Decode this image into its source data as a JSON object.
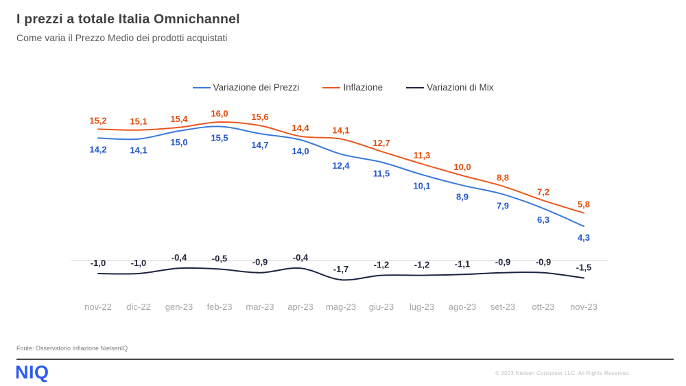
{
  "header": {
    "title": "I prezzi a totale Italia Omnichannel",
    "subtitle": "Come varia il Prezzo Medio dei prodotti acquistati"
  },
  "chart_data": {
    "type": "line",
    "title": "I prezzi a totale Italia Omnichannel",
    "subtitle": "Come varia il Prezzo Medio dei prodotti acquistati",
    "categories": [
      "nov-22",
      "dic-22",
      "gen-23",
      "feb-23",
      "mar-23",
      "apr-23",
      "mag-23",
      "giu-23",
      "lug-23",
      "ago-23",
      "set-23",
      "ott-23",
      "nov-23"
    ],
    "series": [
      {
        "name": "Variazione dei Prezzi",
        "color": "#3a78dc",
        "label_color": "#2356cc",
        "label_position": "below",
        "values": [
          14.2,
          14.1,
          15.0,
          15.5,
          14.7,
          14.0,
          12.4,
          11.5,
          10.1,
          8.9,
          7.9,
          6.3,
          4.3
        ],
        "labels": [
          "14,2",
          "14,1",
          "15,0",
          "15,5",
          "14,7",
          "14,0",
          "12,4",
          "11,5",
          "10,1",
          "8,9",
          "7,9",
          "6,3",
          "4,3"
        ]
      },
      {
        "name": "Inflazione",
        "color": "#eb571f",
        "label_color": "#e24d0a",
        "label_position": "above",
        "values": [
          15.2,
          15.1,
          15.4,
          16.0,
          15.6,
          14.4,
          14.1,
          12.7,
          11.3,
          10.0,
          8.8,
          7.2,
          5.8
        ],
        "labels": [
          "15,2",
          "15,1",
          "15,4",
          "16,0",
          "15,6",
          "14,4",
          "14,1",
          "12,7",
          "11,3",
          "10,0",
          "8,8",
          "7,2",
          "5,8"
        ]
      },
      {
        "name": "Variazioni di Mix",
        "color": "#1c2440",
        "label_color": "#23273a",
        "label_position": "above",
        "values": [
          -1.0,
          -1.0,
          -0.4,
          -0.5,
          -0.9,
          -0.4,
          -1.7,
          -1.2,
          -1.2,
          -1.1,
          -0.9,
          -0.9,
          -1.5
        ],
        "labels": [
          "-1,0",
          "-1,0",
          "-0,4",
          "-0,5",
          "-0,9",
          "-0,4",
          "-1,7",
          "-1,2",
          "-1,2",
          "-1,1",
          "-0,9",
          "-0,9",
          "-1,5"
        ]
      }
    ],
    "xlabel": "",
    "ylabel": "",
    "ylim": [
      -4,
      18
    ],
    "legend_position": "top",
    "grid": "single light horizontal gridline near zero",
    "axis_label_color": "#a6a6a6",
    "gridline_color": "#d9d9d9"
  },
  "footer": {
    "source": "Fonte: Osservatorio Inflazione NielsenIQ",
    "logo": "NIQ",
    "copyright": "© 2023  Nielsen Consumer LLC. All Rights Reserved."
  }
}
